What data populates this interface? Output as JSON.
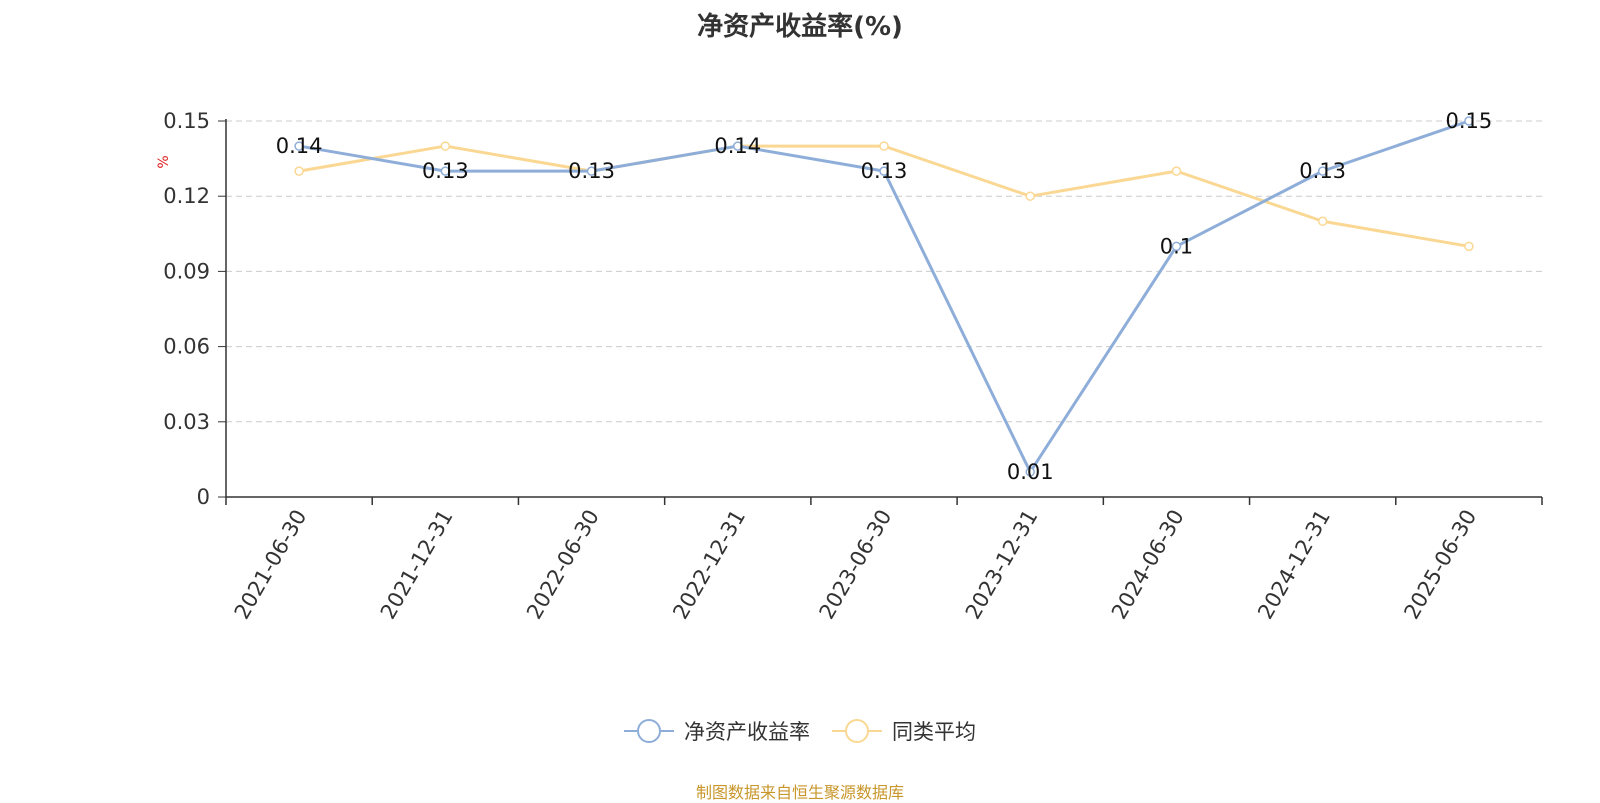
{
  "title": "净资产收益率(%)",
  "source_note": "制图数据来自恒生聚源数据库",
  "colors": {
    "series_roe": "#8eaed9",
    "series_avg": "#fad894",
    "grid": "#cccccc",
    "axis": "#333333",
    "ylabel": "#e02020",
    "source": "#c8962a"
  },
  "chart_data": {
    "type": "line",
    "title": "净资产收益率(%)",
    "xlabel": "",
    "ylabel": "%",
    "ylim": [
      0,
      0.15
    ],
    "y_ticks": [
      0,
      0.03,
      0.06,
      0.09,
      0.12,
      0.15
    ],
    "y_tick_labels": [
      "0",
      "0.03",
      "0.06",
      "0.09",
      "0.12",
      "0.15"
    ],
    "grid": true,
    "legend_position": "bottom-center",
    "categories": [
      "2021-06-30",
      "2021-12-31",
      "2022-06-30",
      "2022-12-31",
      "2023-06-30",
      "2023-12-31",
      "2024-06-30",
      "2024-12-31",
      "2025-06-30"
    ],
    "series": [
      {
        "name": "净资产收益率",
        "values": [
          0.14,
          0.13,
          0.13,
          0.14,
          0.13,
          0.01,
          0.1,
          0.13,
          0.15
        ],
        "data_labels": [
          "0.14",
          "0.13",
          "0.13",
          "0.14",
          "0.13",
          "0.01",
          "0.1",
          "0.13",
          "0.15"
        ]
      },
      {
        "name": "同类平均",
        "values": [
          0.13,
          0.14,
          0.13,
          0.14,
          0.14,
          0.12,
          0.13,
          0.11,
          0.1
        ]
      }
    ]
  }
}
